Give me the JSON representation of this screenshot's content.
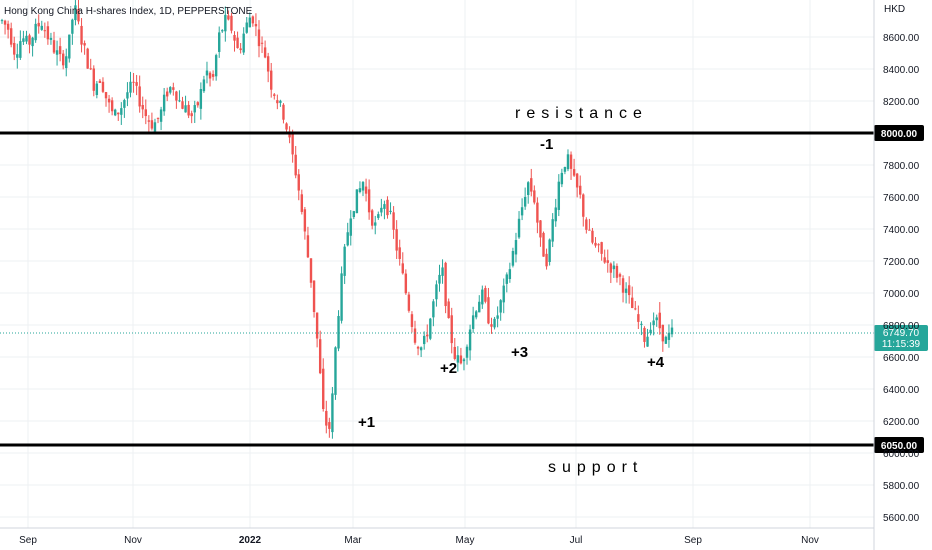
{
  "chart_data": {
    "type": "candlestick",
    "title": "Hong Kong China H-shares Index, 1D, PEPPERSTONE",
    "currency": "HKD",
    "ylim": [
      5500,
      8800
    ],
    "yticks": [
      "8600.00",
      "8400.00",
      "8200.00",
      "7800.00",
      "7600.00",
      "7400.00",
      "7200.00",
      "7000.00",
      "6800.00",
      "6600.00",
      "6400.00",
      "6200.00",
      "6000.00",
      "5800.00",
      "5600.00"
    ],
    "x_labels": [
      {
        "label": "Sep",
        "bold": false
      },
      {
        "label": "Nov",
        "bold": false
      },
      {
        "label": "2022",
        "bold": true
      },
      {
        "label": "Mar",
        "bold": false
      },
      {
        "label": "May",
        "bold": false
      },
      {
        "label": "Jul",
        "bold": false
      },
      {
        "label": "Sep",
        "bold": false
      },
      {
        "label": "Nov",
        "bold": false
      }
    ],
    "grid": true,
    "colors": {
      "up": "#26a69a",
      "down": "#ef5350",
      "line": "#000000",
      "last": "#26a69a"
    },
    "levels": [
      {
        "value": 8000,
        "label": "8000.00",
        "name": "resistance"
      },
      {
        "value": 6050,
        "label": "6050.00",
        "name": "support"
      }
    ],
    "last_price": {
      "value": 6749.7,
      "label": "6749.70",
      "countdown": "11:15:39"
    },
    "annotations": [
      "-1",
      "+1",
      "+2",
      "+3",
      "+4"
    ],
    "price_path": [
      [
        8700,
        8650,
        8500,
        8600,
        8550,
        8640,
        8700,
        8600,
        8520,
        8450,
        8500
      ],
      [
        8800,
        8600,
        8450,
        8300,
        8350,
        8200,
        8100,
        8150,
        8250,
        8300,
        8200,
        8100,
        8050,
        8100,
        8250,
        8300,
        8200,
        8150,
        8100,
        8200,
        8400
      ],
      [
        8300,
        8600,
        8700,
        8650,
        8500,
        8650,
        8750,
        8600,
        8500,
        8300,
        8200,
        8100
      ],
      [
        7900,
        7700,
        7400,
        7100,
        6700,
        6200,
        6150,
        6800,
        7200,
        7500,
        7600,
        7700,
        7500,
        7400,
        7600,
        7500,
        7300,
        7100,
        6900,
        6700
      ],
      [
        6650,
        6800,
        7000,
        7150,
        6800,
        6600,
        6550,
        6750,
        6900,
        7000,
        6850,
        6800,
        6950,
        7100,
        7300,
        7500,
        7700,
        7600,
        7300,
        7200,
        7500,
        7750,
        7850,
        7700,
        7600,
        7400
      ],
      [
        7300,
        7250,
        7200,
        7150,
        7100,
        7000,
        6900,
        6800,
        6700,
        6850,
        6800,
        6700,
        6750
      ]
    ]
  }
}
